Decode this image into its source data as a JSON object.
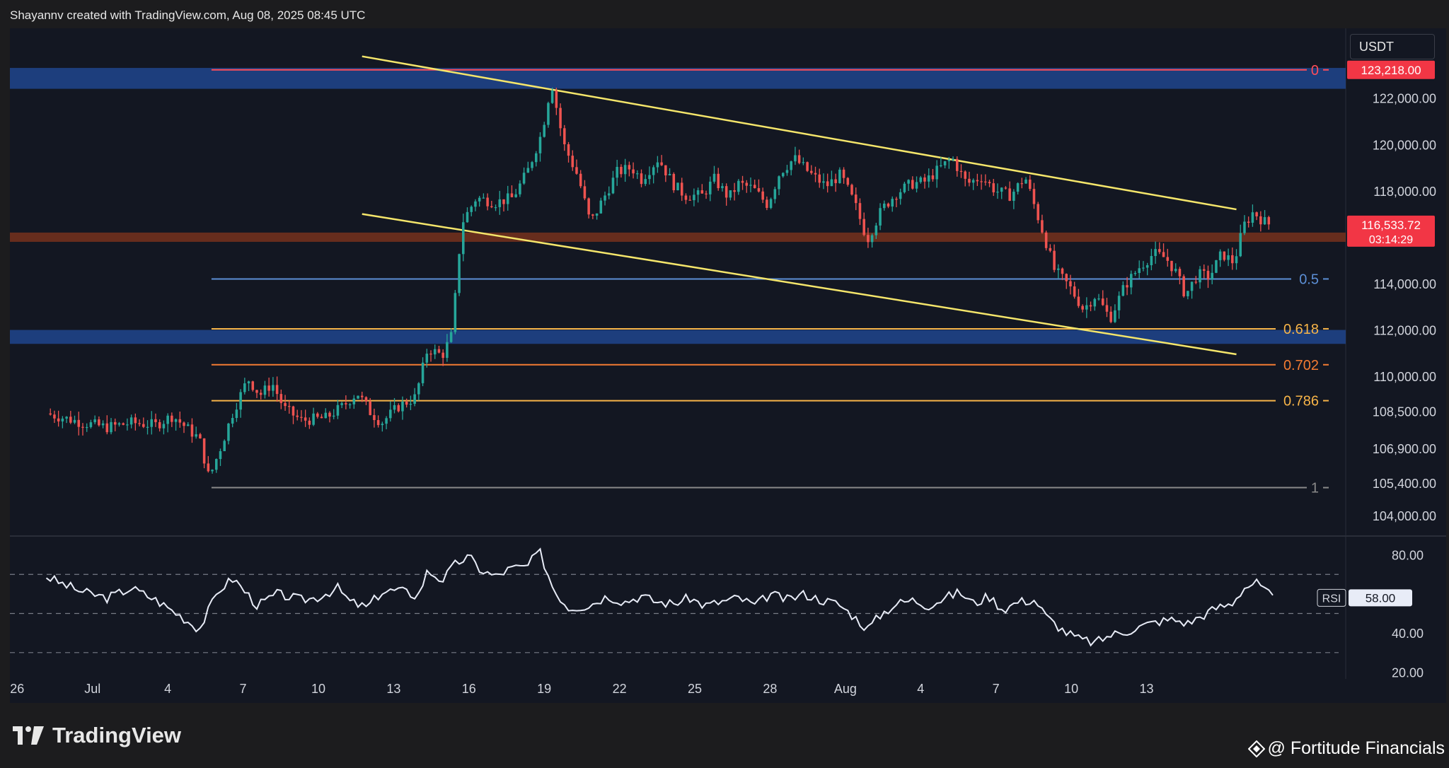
{
  "header": {
    "text": "Shayannv created with TradingView.com, Aug 08, 2025 08:45 UTC"
  },
  "currency_button": "USDT",
  "logo": {
    "text": "TradingView"
  },
  "footer": {
    "credit": "@ Fortitude Financials"
  },
  "colors": {
    "up": "#26a69a",
    "down": "#ef5350",
    "zone_blue": "#1f4287",
    "zone_brown": "#6b2e1d",
    "trendline": "#f5e66b",
    "rsi_line": "#e8ecf7",
    "fib_top": "#ff4d5a",
    "fib_05": "#5c8fd6",
    "fib_0618": "#f7b448",
    "fib_0702": "#f47c32",
    "fib_0786": "#f7b448",
    "fib_1": "#8a8a8a"
  },
  "chart_data": {
    "type": "candlestick",
    "symbol_quote": "USDT",
    "price_range": [
      103600,
      124400
    ],
    "rsi_range": [
      18,
      86
    ],
    "price_axis_labels": [
      "122,000.00",
      "120,000.00",
      "118,000.00",
      "114,000.00",
      "112,000.00",
      "110,000.00",
      "108,500.00",
      "106,900.00",
      "105,400.00",
      "104,000.00"
    ],
    "price_axis_values": [
      122000,
      120000,
      118000,
      114000,
      112000,
      110000,
      108500,
      106900,
      105400,
      104000
    ],
    "rsi_axis_labels": [
      "80.00",
      "40.00",
      "20.00"
    ],
    "rsi_axis_values": [
      80,
      40,
      20
    ],
    "rsi_bands": [
      70,
      50,
      30
    ],
    "time_labels": [
      "26",
      "Jul",
      "4",
      "7",
      "10",
      "13",
      "16",
      "19",
      "22",
      "25",
      "28",
      "Aug",
      "4",
      "7",
      "10",
      "13"
    ],
    "fib_levels": [
      {
        "label": "0",
        "price": 123218,
        "key": "fib_top"
      },
      {
        "label": "0.5",
        "price": 114200,
        "key": "fib_05"
      },
      {
        "label": "0.618",
        "price": 112050,
        "key": "fib_0618"
      },
      {
        "label": "0.702",
        "price": 110500,
        "key": "fib_0702"
      },
      {
        "label": "0.786",
        "price": 108950,
        "key": "fib_0786"
      },
      {
        "label": "1",
        "price": 105200,
        "key": "fib_1"
      }
    ],
    "zones": [
      {
        "name": "supply",
        "top": 123300,
        "bottom": 122400,
        "color_key": "zone_blue"
      },
      {
        "name": "demand",
        "top": 112000,
        "bottom": 111400,
        "color_key": "zone_blue"
      },
      {
        "name": "pivot",
        "top": 116200,
        "bottom": 115800,
        "color_key": "zone_brown"
      }
    ],
    "trendlines": [
      {
        "from": {
          "day": 12.5,
          "price": 123800
        },
        "to": {
          "day": 48.5,
          "price": 117200
        }
      },
      {
        "from": {
          "day": 12.5,
          "price": 117000
        },
        "to": {
          "day": 48.5,
          "price": 110950
        }
      }
    ],
    "price_badges": [
      {
        "price": 123218,
        "label": "123,218.00"
      },
      {
        "price": 116533.72,
        "label": "116,533.72",
        "sublabel": "03:14:29"
      }
    ],
    "rsi_badge": {
      "label": "RSI",
      "value": "58.00",
      "rsi": 58
    },
    "candle_keypoints": [
      [
        -0.5,
        108400
      ],
      [
        1,
        108000
      ],
      [
        2,
        107800
      ],
      [
        3,
        108000
      ],
      [
        4,
        107900
      ],
      [
        4.7,
        108300
      ],
      [
        5.8,
        107300
      ],
      [
        6.2,
        105600
      ],
      [
        6.7,
        107000
      ],
      [
        7.2,
        108500
      ],
      [
        7.8,
        109900
      ],
      [
        8.3,
        109200
      ],
      [
        8.8,
        109700
      ],
      [
        9.3,
        108600
      ],
      [
        10,
        108100
      ],
      [
        11,
        108200
      ],
      [
        11.7,
        108700
      ],
      [
        12.3,
        109300
      ],
      [
        12.8,
        108500
      ],
      [
        13.3,
        108000
      ],
      [
        14,
        108700
      ],
      [
        14.7,
        109100
      ],
      [
        15.2,
        111200
      ],
      [
        15.8,
        110900
      ],
      [
        16.2,
        111800
      ],
      [
        16.6,
        116600
      ],
      [
        17.2,
        117700
      ],
      [
        18,
        117500
      ],
      [
        18.7,
        117700
      ],
      [
        19.3,
        118800
      ],
      [
        19.9,
        120500
      ],
      [
        20.3,
        122700
      ],
      [
        20.8,
        120000
      ],
      [
        21.4,
        118600
      ],
      [
        21.9,
        116600
      ],
      [
        22.5,
        117800
      ],
      [
        23,
        118800
      ],
      [
        23.6,
        119000
      ],
      [
        24,
        118500
      ],
      [
        24.7,
        119400
      ],
      [
        25.3,
        118300
      ],
      [
        25.8,
        117800
      ],
      [
        26.5,
        117800
      ],
      [
        27,
        118500
      ],
      [
        27.6,
        117700
      ],
      [
        28,
        118300
      ],
      [
        28.6,
        118100
      ],
      [
        29.2,
        117400
      ],
      [
        29.7,
        118800
      ],
      [
        30.3,
        119400
      ],
      [
        31,
        118700
      ],
      [
        31.6,
        118200
      ],
      [
        32.2,
        118700
      ],
      [
        32.8,
        117400
      ],
      [
        33.3,
        115900
      ],
      [
        33.9,
        117200
      ],
      [
        34.5,
        117900
      ],
      [
        35.1,
        118300
      ],
      [
        35.7,
        118400
      ],
      [
        36.2,
        118900
      ],
      [
        36.8,
        119400
      ],
      [
        37.4,
        118300
      ],
      [
        38,
        118600
      ],
      [
        38.6,
        118000
      ],
      [
        39.2,
        117800
      ],
      [
        39.8,
        118600
      ],
      [
        40.2,
        117300
      ],
      [
        40.6,
        116000
      ],
      [
        41,
        114600
      ],
      [
        41.6,
        113900
      ],
      [
        42.2,
        112900
      ],
      [
        42.7,
        113500
      ],
      [
        43.3,
        112500
      ],
      [
        43.9,
        113900
      ],
      [
        44.5,
        114700
      ],
      [
        45.1,
        115300
      ],
      [
        45.6,
        115100
      ],
      [
        46,
        114500
      ],
      [
        46.4,
        113500
      ],
      [
        46.9,
        114400
      ],
      [
        47.4,
        114300
      ],
      [
        47.9,
        115300
      ],
      [
        48.4,
        114900
      ],
      [
        48.8,
        116500
      ],
      [
        49.2,
        117100
      ],
      [
        49.6,
        116700
      ],
      [
        49.9,
        116533
      ]
    ],
    "rsi_keypoints": [
      [
        -0.5,
        69
      ],
      [
        0,
        66
      ],
      [
        1,
        61
      ],
      [
        2,
        58
      ],
      [
        3,
        63
      ],
      [
        4,
        57
      ],
      [
        5,
        49
      ],
      [
        5.8,
        42
      ],
      [
        6.6,
        62
      ],
      [
        7.2,
        68
      ],
      [
        8.2,
        54
      ],
      [
        9,
        60
      ],
      [
        10,
        57
      ],
      [
        10.6,
        58
      ],
      [
        11.5,
        63
      ],
      [
        12,
        56
      ],
      [
        12.7,
        53
      ],
      [
        13.3,
        61
      ],
      [
        14,
        62
      ],
      [
        14.8,
        59
      ],
      [
        15.2,
        72
      ],
      [
        15.8,
        67
      ],
      [
        16.4,
        76
      ],
      [
        16.9,
        79
      ],
      [
        17.4,
        72
      ],
      [
        18,
        69
      ],
      [
        18.6,
        73
      ],
      [
        19.3,
        74
      ],
      [
        19.8,
        82
      ],
      [
        20.4,
        62
      ],
      [
        21,
        53
      ],
      [
        21.8,
        54
      ],
      [
        22.6,
        59
      ],
      [
        23.3,
        56
      ],
      [
        24,
        59
      ],
      [
        24.6,
        56
      ],
      [
        25.3,
        55
      ],
      [
        26,
        58
      ],
      [
        26.6,
        54
      ],
      [
        27.3,
        56
      ],
      [
        28,
        58
      ],
      [
        28.7,
        54
      ],
      [
        29.3,
        60
      ],
      [
        30,
        57
      ],
      [
        30.7,
        60
      ],
      [
        31.4,
        57
      ],
      [
        32.1,
        55
      ],
      [
        32.8,
        48
      ],
      [
        33.3,
        42
      ],
      [
        33.9,
        50
      ],
      [
        34.5,
        55
      ],
      [
        35.2,
        57
      ],
      [
        35.8,
        54
      ],
      [
        36.5,
        58
      ],
      [
        37.1,
        61
      ],
      [
        37.7,
        55
      ],
      [
        38.3,
        59
      ],
      [
        38.9,
        52
      ],
      [
        39.5,
        56
      ],
      [
        40.2,
        57
      ],
      [
        40.7,
        48
      ],
      [
        41.4,
        41
      ],
      [
        42,
        37
      ],
      [
        42.7,
        35
      ],
      [
        43.3,
        39
      ],
      [
        44,
        41
      ],
      [
        44.7,
        44
      ],
      [
        45.3,
        46
      ],
      [
        45.9,
        47
      ],
      [
        46.5,
        45
      ],
      [
        47.1,
        49
      ],
      [
        47.7,
        53
      ],
      [
        48.3,
        55
      ],
      [
        48.8,
        63
      ],
      [
        49.3,
        66
      ],
      [
        49.7,
        61
      ],
      [
        50,
        58
      ]
    ]
  }
}
